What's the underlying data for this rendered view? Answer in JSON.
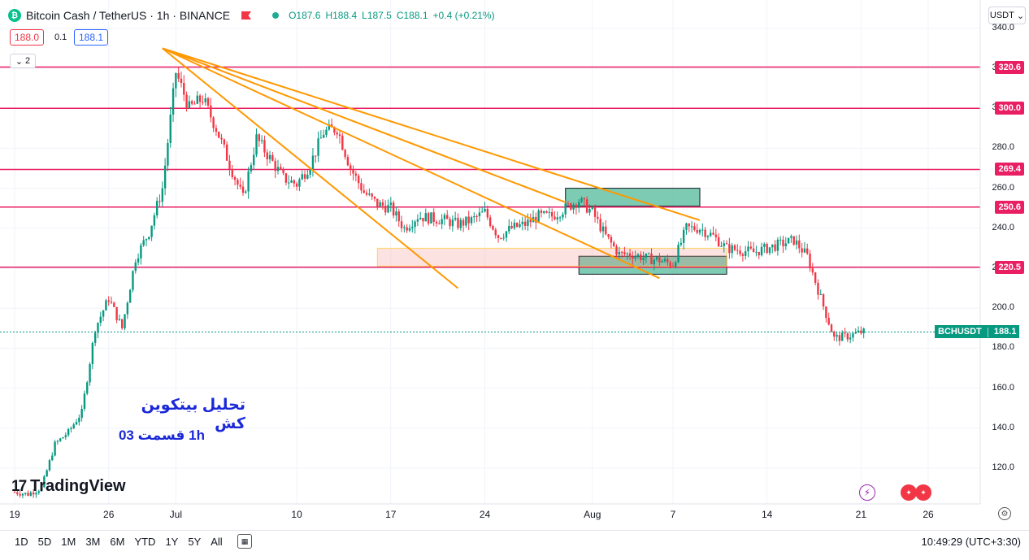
{
  "header": {
    "coin_glyph": "₿",
    "title": "Bitcoin Cash / TetherUS · 1h · BINANCE",
    "ohlc": {
      "o": "O187.6",
      "h": "H188.4",
      "l": "L187.5",
      "c": "C188.1",
      "chg": "+0.4 (+0.21%)"
    }
  },
  "trade": {
    "sell": "188.0",
    "spread": "0.1",
    "buy": "188.1"
  },
  "indicators_count": "2",
  "currency_label": "USDT",
  "watermark": "TradingView",
  "annotation": {
    "line1": "تحلیل بیتکوین کش",
    "line2": "1h   قسمت 03"
  },
  "bottom": {
    "ranges": [
      "1D",
      "5D",
      "1M",
      "3M",
      "6M",
      "YTD",
      "1Y",
      "5Y",
      "All"
    ],
    "clock": "10:49:29 (UTC+3:30)"
  },
  "colors": {
    "up": "#089981",
    "down": "#f23645",
    "level": "#e91e63",
    "trend": "#ff9800",
    "zone": "#66c2a5"
  },
  "icons": [
    "coin-icon",
    "flag-icon",
    "settings-icon",
    "bolt-icon",
    "calendar-icon"
  ],
  "chart_data": {
    "type": "candlestick",
    "symbol_label": "BCHUSDT",
    "last_price": "188.1",
    "ylim": [
      110,
      345
    ],
    "y_ticks": [
      "340.0",
      "320.0",
      "300.0",
      "280.0",
      "260.0",
      "240.0",
      "220.0",
      "200.0",
      "180.0",
      "160.0",
      "140.0",
      "120.0"
    ],
    "x_ticks": [
      "19",
      "26",
      "Jul",
      "10",
      "17",
      "24",
      "Aug",
      "7",
      "14",
      "21",
      "26"
    ],
    "horizontal_levels": [
      "320.6",
      "300.0",
      "269.4",
      "250.6",
      "220.5"
    ],
    "path": [
      [
        "2023-06-19",
        108
      ],
      [
        "2023-06-20",
        107
      ],
      [
        "2023-06-21",
        110
      ],
      [
        "2023-06-22",
        132
      ],
      [
        "2023-06-23",
        138
      ],
      [
        "2023-06-24",
        148
      ],
      [
        "2023-06-25",
        190
      ],
      [
        "2023-06-26",
        205
      ],
      [
        "2023-06-27",
        190
      ],
      [
        "2023-06-28",
        225
      ],
      [
        "2023-06-29",
        238
      ],
      [
        "2023-06-30",
        260
      ],
      [
        "2023-07-01",
        318
      ],
      [
        "2023-07-02",
        300
      ],
      [
        "2023-07-03",
        305
      ],
      [
        "2023-07-04",
        290
      ],
      [
        "2023-07-05",
        272
      ],
      [
        "2023-07-06",
        255
      ],
      [
        "2023-07-07",
        285
      ],
      [
        "2023-07-08",
        275
      ],
      [
        "2023-07-09",
        265
      ],
      [
        "2023-07-10",
        262
      ],
      [
        "2023-07-11",
        272
      ],
      [
        "2023-07-12",
        288
      ],
      [
        "2023-07-13",
        290
      ],
      [
        "2023-07-14",
        270
      ],
      [
        "2023-07-15",
        258
      ],
      [
        "2023-07-16",
        252
      ],
      [
        "2023-07-17",
        250
      ],
      [
        "2023-07-18",
        240
      ],
      [
        "2023-07-19",
        246
      ],
      [
        "2023-07-20",
        245
      ],
      [
        "2023-07-21",
        244
      ],
      [
        "2023-07-22",
        242
      ],
      [
        "2023-07-23",
        244
      ],
      [
        "2023-07-24",
        248
      ],
      [
        "2023-07-25",
        236
      ],
      [
        "2023-07-26",
        240
      ],
      [
        "2023-07-27",
        242
      ],
      [
        "2023-07-28",
        246
      ],
      [
        "2023-07-29",
        246
      ],
      [
        "2023-07-30",
        250
      ],
      [
        "2023-07-31",
        254
      ],
      [
        "2023-08-01",
        248
      ],
      [
        "2023-08-02",
        236
      ],
      [
        "2023-08-03",
        227
      ],
      [
        "2023-08-04",
        227
      ],
      [
        "2023-08-05",
        225
      ],
      [
        "2023-08-06",
        224
      ],
      [
        "2023-08-07",
        222
      ],
      [
        "2023-08-08",
        240
      ],
      [
        "2023-08-09",
        240
      ],
      [
        "2023-08-10",
        236
      ],
      [
        "2023-08-11",
        230
      ],
      [
        "2023-08-12",
        229
      ],
      [
        "2023-08-13",
        228
      ],
      [
        "2023-08-14",
        230
      ],
      [
        "2023-08-15",
        232
      ],
      [
        "2023-08-16",
        234
      ],
      [
        "2023-08-17",
        226
      ],
      [
        "2023-08-18",
        205
      ],
      [
        "2023-08-19",
        185
      ],
      [
        "2023-08-20",
        186
      ],
      [
        "2023-08-21",
        188
      ]
    ],
    "trendlines": [
      {
        "from": [
          "2023-06-30",
          330
        ],
        "to": [
          "2023-07-22",
          210
        ]
      },
      {
        "from": [
          "2023-06-30",
          330
        ],
        "to": [
          "2023-08-06",
          215
        ]
      },
      {
        "from": [
          "2023-06-30",
          330
        ],
        "to": [
          "2023-08-09",
          244
        ]
      },
      {
        "from": [
          "2023-06-30",
          330
        ],
        "to": [
          "2023-07-30",
          253
        ]
      }
    ],
    "zones": [
      {
        "from": "2023-07-30",
        "to": "2023-08-09",
        "top": 260,
        "bottom": 251,
        "kind": "green"
      },
      {
        "from": "2023-07-31",
        "to": "2023-08-11",
        "top": 226,
        "bottom": 217,
        "kind": "green"
      },
      {
        "from": "2023-07-16",
        "to": "2023-08-11",
        "top": 230,
        "bottom": 221,
        "kind": "pink"
      }
    ]
  }
}
